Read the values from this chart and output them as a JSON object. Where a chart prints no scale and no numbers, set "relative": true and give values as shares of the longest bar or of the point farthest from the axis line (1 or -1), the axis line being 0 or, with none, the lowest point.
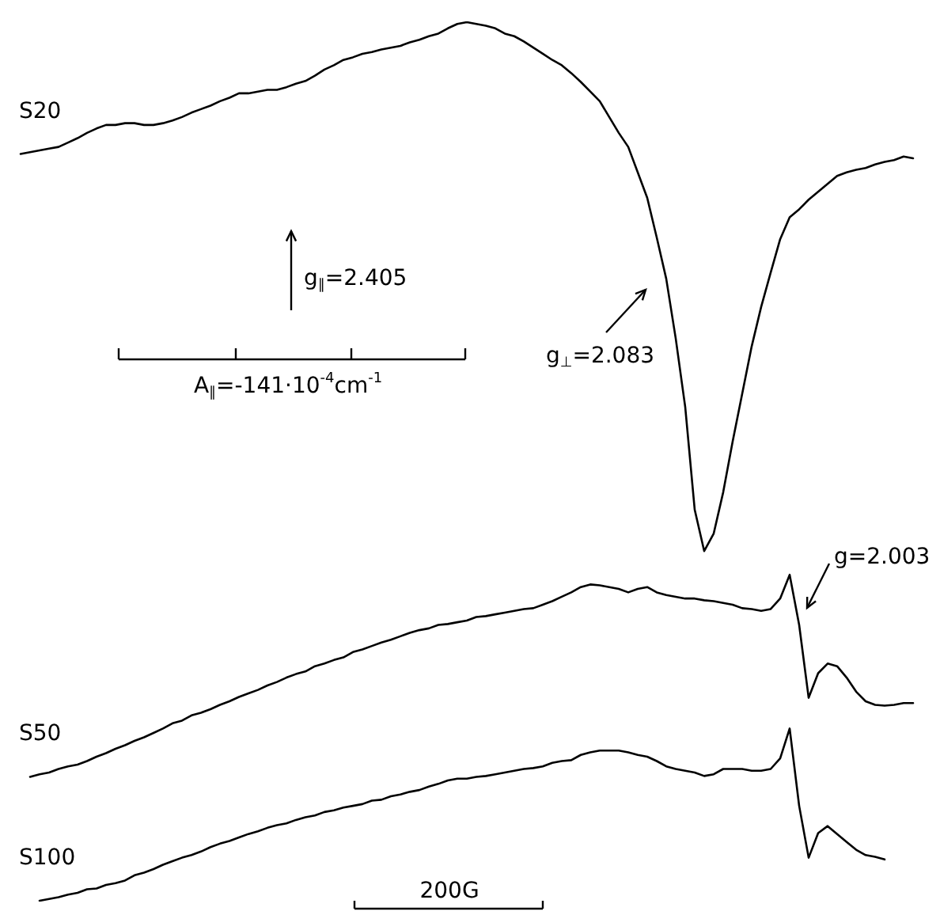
{
  "chart_data": {
    "type": "line",
    "relative": true,
    "marker": "none",
    "categories": [
      null,
      null,
      null,
      null,
      null,
      null,
      null,
      null,
      null,
      null,
      null,
      null,
      null,
      null,
      null,
      null,
      null,
      null,
      null,
      null,
      null,
      null,
      null,
      null,
      null,
      null,
      null,
      null,
      null,
      null,
      null,
      null,
      null,
      null,
      null,
      null,
      null,
      null,
      null,
      null,
      null,
      null,
      null,
      null,
      null,
      null,
      null,
      null,
      null,
      null,
      null,
      null,
      null,
      null,
      null,
      null,
      null,
      null,
      null,
      null,
      null,
      null,
      null,
      null,
      null,
      null,
      null,
      null,
      null,
      null,
      null,
      null,
      null,
      null,
      null,
      null,
      null,
      null,
      null,
      null,
      null,
      null,
      null,
      null,
      null,
      null,
      null,
      null,
      null,
      null,
      null,
      null,
      null,
      null,
      null
    ],
    "series": [
      {
        "name": "S20",
        "color": "#000000",
        "values": [
          0.85,
          0.852,
          0.854,
          0.856,
          0.858,
          0.863,
          0.868,
          0.874,
          0.879,
          0.883,
          0.883,
          0.885,
          0.885,
          0.883,
          0.883,
          0.885,
          0.888,
          0.892,
          0.897,
          0.901,
          0.905,
          0.91,
          0.914,
          0.919,
          0.919,
          0.921,
          0.923,
          0.923,
          0.926,
          0.93,
          0.933,
          0.939,
          0.946,
          0.951,
          0.957,
          0.96,
          0.964,
          0.966,
          0.969,
          0.971,
          0.973,
          0.977,
          0.98,
          0.984,
          0.987,
          0.993,
          0.998,
          1,
          0.998,
          0.996,
          0.993,
          0.987,
          0.984,
          0.978,
          0.971,
          0.964,
          0.957,
          0.951,
          0.942,
          0.932,
          0.921,
          0.91,
          0.892,
          0.874,
          0.858,
          0.829,
          0.8,
          0.755,
          0.708,
          0.64,
          0.562,
          0.445,
          0.398,
          0.418,
          0.465,
          0.523,
          0.577,
          0.631,
          0.676,
          0.715,
          0.753,
          0.778,
          0.787,
          0.798,
          0.807,
          0.816,
          0.825,
          0.829,
          0.832,
          0.834,
          0.838,
          0.841,
          0.843,
          0.847,
          0.845
        ]
      },
      {
        "name": "S50",
        "color": "#000000",
        "values": [
          null,
          0.141,
          0.144,
          0.146,
          0.15,
          0.153,
          0.155,
          0.159,
          0.164,
          0.168,
          0.173,
          0.177,
          0.182,
          0.186,
          0.191,
          0.196,
          0.202,
          0.205,
          0.211,
          0.214,
          0.218,
          0.223,
          0.227,
          0.232,
          0.236,
          0.24,
          0.245,
          0.249,
          0.254,
          0.258,
          0.261,
          0.267,
          0.27,
          0.274,
          0.277,
          0.283,
          0.286,
          0.29,
          0.294,
          0.297,
          0.301,
          0.305,
          0.308,
          0.31,
          0.314,
          0.315,
          0.317,
          0.319,
          0.323,
          0.324,
          0.326,
          0.328,
          0.33,
          0.332,
          0.333,
          0.337,
          0.341,
          0.346,
          0.351,
          0.357,
          0.36,
          0.359,
          0.357,
          0.355,
          0.351,
          0.355,
          0.357,
          0.351,
          0.348,
          0.346,
          0.344,
          0.344,
          0.342,
          0.341,
          0.339,
          0.337,
          0.333,
          0.332,
          0.33,
          0.332,
          0.344,
          0.371,
          0.314,
          0.231,
          0.259,
          0.27,
          0.267,
          0.254,
          0.238,
          0.227,
          0.223,
          0.222,
          0.223,
          0.225,
          0.225
        ]
      },
      {
        "name": "S100",
        "color": "#000000",
        "values": [
          null,
          null,
          0,
          0.002,
          0.004,
          0.007,
          0.009,
          0.013,
          0.014,
          0.018,
          0.02,
          0.023,
          0.029,
          0.032,
          0.036,
          0.041,
          0.045,
          0.049,
          0.052,
          0.056,
          0.061,
          0.065,
          0.068,
          0.072,
          0.076,
          0.079,
          0.083,
          0.086,
          0.088,
          0.092,
          0.095,
          0.097,
          0.101,
          0.103,
          0.106,
          0.108,
          0.11,
          0.114,
          0.115,
          0.119,
          0.121,
          0.124,
          0.126,
          0.13,
          0.133,
          0.137,
          0.139,
          0.139,
          0.141,
          0.142,
          0.144,
          0.146,
          0.148,
          0.15,
          0.151,
          0.153,
          0.157,
          0.159,
          0.16,
          0.166,
          0.169,
          0.171,
          0.171,
          0.171,
          0.169,
          0.166,
          0.164,
          0.159,
          0.153,
          0.15,
          0.148,
          0.146,
          0.142,
          0.144,
          0.15,
          0.15,
          0.15,
          0.148,
          0.148,
          0.15,
          0.162,
          0.196,
          0.108,
          0.049,
          0.077,
          0.085,
          0.076,
          0.067,
          0.058,
          0.052,
          0.05,
          0.047,
          null,
          null,
          null
        ]
      }
    ],
    "annotations": [
      "g$_{∥}$=2.405",
      "g$_{⊥}$=2.083",
      "g=2.003",
      "A$_{∥}$=-141·10$^{-4}$cm$^{-1}$",
      "200G"
    ]
  }
}
